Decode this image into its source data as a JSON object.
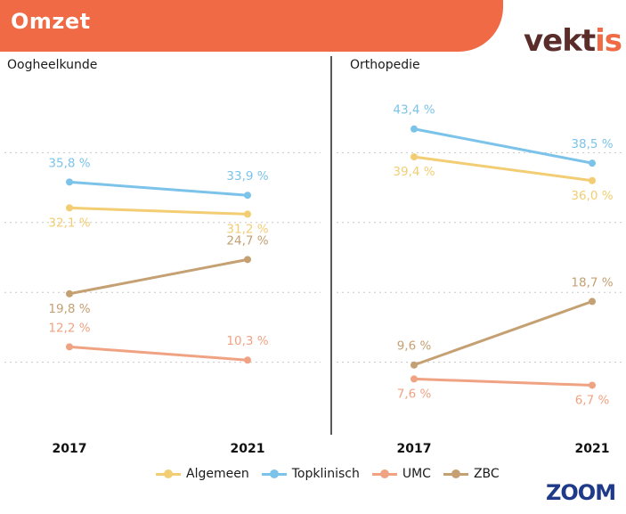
{
  "header": {
    "title": "Omzet"
  },
  "logo": {
    "main": "vekt",
    "tail": "is"
  },
  "zoom_logo": "ZOOM",
  "colors": {
    "Algemeen": "#f2cd73",
    "Topklinisch": "#7cc3ea",
    "UMC": "#f0a383",
    "ZBC": "#c4a072",
    "banner": "#ef6a45"
  },
  "chart_data": [
    {
      "type": "line",
      "title": "Oogheelkunde",
      "x": [
        "2017",
        "2021"
      ],
      "ylim": [
        0,
        50
      ],
      "series": [
        {
          "name": "Algemeen",
          "values": [
            32.1,
            31.2
          ],
          "labels": [
            "32,1 %",
            "31,2 %"
          ]
        },
        {
          "name": "Topklinisch",
          "values": [
            35.8,
            33.9
          ],
          "labels": [
            "35,8 %",
            "33,9 %"
          ]
        },
        {
          "name": "UMC",
          "values": [
            12.2,
            10.3
          ],
          "labels": [
            "12,2 %",
            "10,3 %"
          ]
        },
        {
          "name": "ZBC",
          "values": [
            19.8,
            24.7
          ],
          "labels": [
            "19,8 %",
            "24,7 %"
          ]
        }
      ]
    },
    {
      "type": "line",
      "title": "Orthopedie",
      "x": [
        "2017",
        "2021"
      ],
      "ylim": [
        0,
        50
      ],
      "series": [
        {
          "name": "Algemeen",
          "values": [
            39.4,
            36.0
          ],
          "labels": [
            "39,4 %",
            "36,0 %"
          ]
        },
        {
          "name": "Topklinisch",
          "values": [
            43.4,
            38.5
          ],
          "labels": [
            "43,4 %",
            "38,5 %"
          ]
        },
        {
          "name": "UMC",
          "values": [
            7.6,
            6.7
          ],
          "labels": [
            "7,6 %",
            "6,7 %"
          ]
        },
        {
          "name": "ZBC",
          "values": [
            9.6,
            18.7
          ],
          "labels": [
            "9,6 %",
            "18,7 %"
          ]
        }
      ]
    }
  ],
  "legend": [
    "Algemeen",
    "Topklinisch",
    "UMC",
    "ZBC"
  ]
}
